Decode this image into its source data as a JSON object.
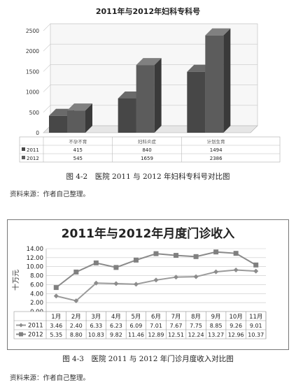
{
  "chart_data": [
    {
      "type": "bar",
      "title": "2011年与2012年妇科专科号",
      "categories": [
        "不孕不育",
        "妇科炎症",
        "计划生育"
      ],
      "series": [
        {
          "name": "2011",
          "values": [
            415,
            840,
            1494
          ]
        },
        {
          "name": "2012",
          "values": [
            545,
            1659,
            2386
          ]
        }
      ],
      "ylim": [
        0,
        2500
      ],
      "yticks": [
        "0",
        "500",
        "1000",
        "1500",
        "2000",
        "2500"
      ],
      "style": "3d-column",
      "grid": true,
      "legend": "data-table",
      "colors": [
        "#3a3a3a",
        "#5a5a5a"
      ]
    },
    {
      "type": "line",
      "title": "2011年与2012年月度门诊收入",
      "ylabel": "十万元",
      "categories": [
        "1月",
        "2月",
        "3月",
        "4月",
        "5月",
        "6月",
        "7月",
        "8月",
        "9月",
        "10月",
        "11月"
      ],
      "series": [
        {
          "name": "2011",
          "marker": "diamond",
          "values": [
            "3.46",
            "2.40",
            "6.33",
            "6.23",
            "6.09",
            "7.01",
            "7.67",
            "7.75",
            "8.85",
            "9.26",
            "9.01"
          ]
        },
        {
          "name": "2012",
          "marker": "square",
          "values": [
            "5.35",
            "8.80",
            "10.83",
            "9.82",
            "11.46",
            "12.89",
            "12.51",
            "12.24",
            "13.27",
            "12.96",
            "10.37"
          ]
        }
      ],
      "ylim": [
        0,
        14
      ],
      "yticks": [
        "0.00",
        "2.00",
        "4.00",
        "6.00",
        "8.00",
        "10.00",
        "12.00",
        "14.00"
      ],
      "grid": true,
      "legend": "data-table",
      "colors": [
        "#a0a0a0",
        "#8a8a8a"
      ]
    }
  ],
  "captions": {
    "fig1": "图 4-2　医院 2011 与 2012 年妇科专科号对比图",
    "fig2": "图 4-3　医院 2011 与 2012 年门诊月度收入对比图",
    "source": "资料来源：作者自己整理。"
  }
}
